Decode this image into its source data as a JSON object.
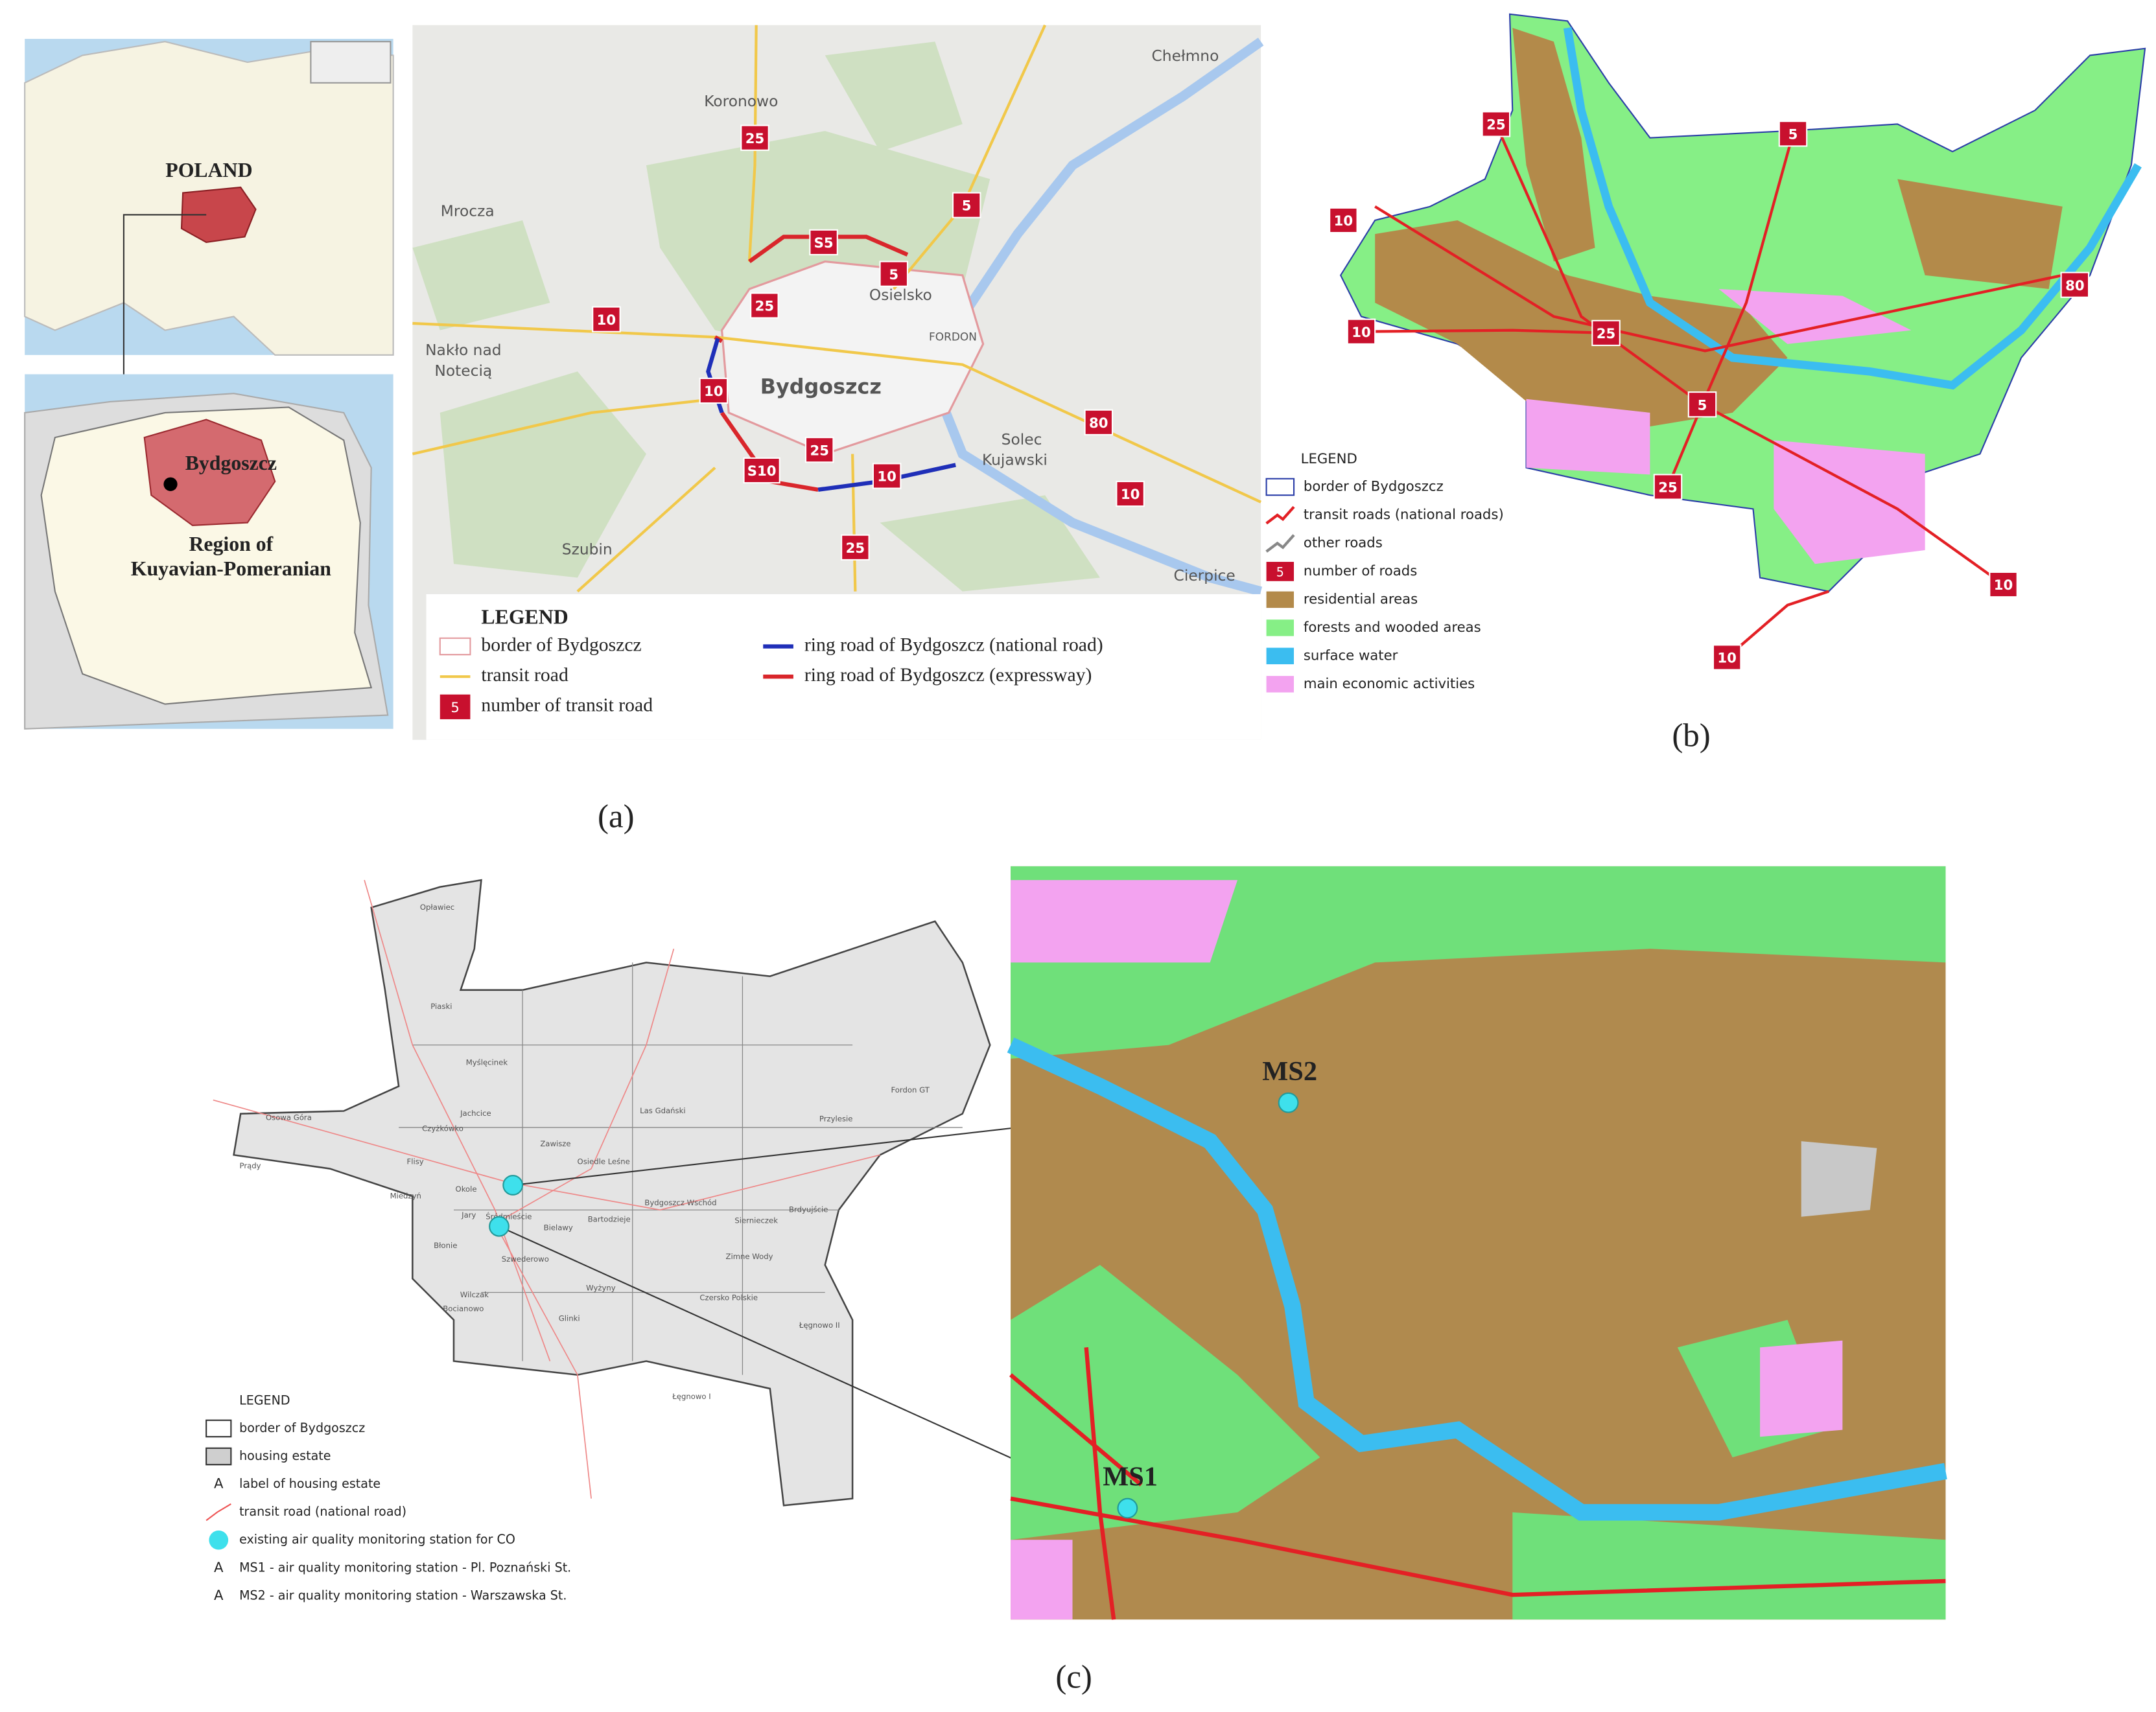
{
  "panel_a": {
    "caption": "(a)",
    "europe_label": "POLAND",
    "poland_city": "Bydgoszcz",
    "poland_region": [
      "Region of",
      "Kuyavian-Pomeranian"
    ],
    "towns": [
      "Koronowo",
      "Chełmno",
      "Mrocza",
      "Osielsko",
      "FORDON",
      "Nakło nad",
      "Notecią",
      "Bydgoszcz",
      "Solec",
      "Kujawski",
      "Szubin",
      "Cierpice"
    ],
    "road_numbers": [
      "25",
      "5",
      "S5",
      "5",
      "25",
      "10",
      "10",
      "25",
      "80",
      "S10",
      "10",
      "10",
      "25"
    ],
    "legend": {
      "title": "LEGEND",
      "items": [
        {
          "label": "border of Bydgoszcz"
        },
        {
          "label": "transit road"
        },
        {
          "label": "number of transit road",
          "icon": "5"
        },
        {
          "label": "ring road of Bydgoszcz (national road)"
        },
        {
          "label": "ring road of Bydgoszcz (expressway)"
        }
      ]
    }
  },
  "panel_b": {
    "caption": "(b)",
    "road_numbers": [
      "25",
      "5",
      "10",
      "10",
      "25",
      "5",
      "80",
      "25",
      "10",
      "10"
    ],
    "legend": {
      "title": "LEGEND",
      "items": [
        {
          "label": "border of Bydgoszcz"
        },
        {
          "label": "transit roads (national roads)"
        },
        {
          "label": "other roads"
        },
        {
          "label": "number of roads",
          "icon": "5"
        },
        {
          "label": "residential areas"
        },
        {
          "label": "forests and wooded areas"
        },
        {
          "label": "surface water"
        },
        {
          "label": "main economic activities"
        }
      ]
    }
  },
  "panel_c": {
    "caption": "(c)",
    "estates": [
      "Opławiec",
      "Piaski",
      "Myślęcinek",
      "Jachcice",
      "Czyżkówko",
      "Osowa Góra",
      "Prądy",
      "Flisy",
      "Miedzyń",
      "Okole",
      "Jary",
      "Śródmieście",
      "Bielawy",
      "Bartodzieje",
      "Bydgoszcz Wschód",
      "Siernieczek",
      "Brdyujście",
      "Fordon GT",
      "Las Gdański",
      "Osiedle Leśne",
      "Zawisze",
      "Przylesie",
      "Łęgnowo I",
      "Łęgnowo II",
      "Glinki",
      "Wyżyny",
      "Czersko Polskie",
      "Zimne Wody",
      "Błonie",
      "Szwederowo",
      "Wilczak",
      "Bocianowo"
    ],
    "stations": [
      "MS2",
      "MS1"
    ],
    "legend": {
      "title": "LEGEND",
      "items": [
        {
          "label": "border of Bydgoszcz"
        },
        {
          "label": "housing estate"
        },
        {
          "label": "label of housing estate",
          "icon": "A"
        },
        {
          "label": "transit road (national road)"
        },
        {
          "label": "existing air quality monitoring station for CO"
        },
        {
          "label": "MS1 - air quality monitoring station - Pl. Poznański St.",
          "icon": "A"
        },
        {
          "label": "MS2 - air quality monitoring station - Warszawska St.",
          "icon": "A"
        }
      ]
    }
  }
}
